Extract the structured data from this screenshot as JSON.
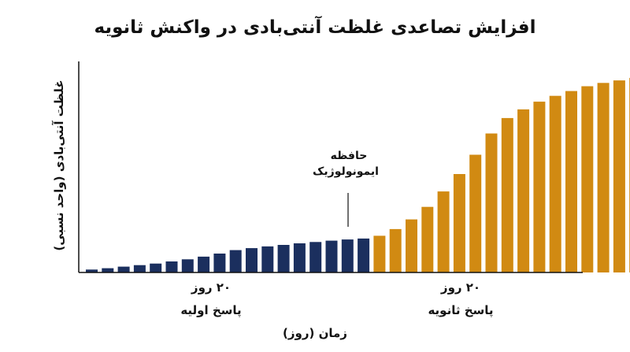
{
  "chart_data": {
    "type": "bar",
    "title": "افزایش تصاعدی غلظت آنتی‌بادی در واکنش ثانویه",
    "ylabel": "غلظت آنتی‌بادی (واحد نسبی)",
    "xlabel": "زمان (روز)",
    "grid": false,
    "legend": "none",
    "ylim": [
      0,
      100
    ],
    "annotation": {
      "line1": "حافظه",
      "line2": "ایمونولوژیک"
    },
    "phases": [
      {
        "name": "پاسخ اولیه",
        "duration": "۲۰ روز",
        "color": "#1b2f5e"
      },
      {
        "name": "پاسخ ثانویه",
        "duration": "۲۰ روز",
        "color": "#d18a12"
      }
    ],
    "series": [
      {
        "phase": 0,
        "values": [
          1.5,
          2.2,
          3,
          3.8,
          4.6,
          5.7,
          6.8,
          8.2,
          9.8,
          11.6,
          12.6,
          13.5,
          14.3,
          15.1,
          15.8,
          16.5,
          17.1,
          17.6
        ]
      },
      {
        "phase": 1,
        "values": [
          19,
          22.5,
          27.5,
          34,
          42,
          51,
          61,
          72,
          80,
          84.5,
          88.5,
          91.5,
          94,
          96.5,
          98.2,
          99.5,
          100.8,
          102
        ]
      }
    ]
  }
}
